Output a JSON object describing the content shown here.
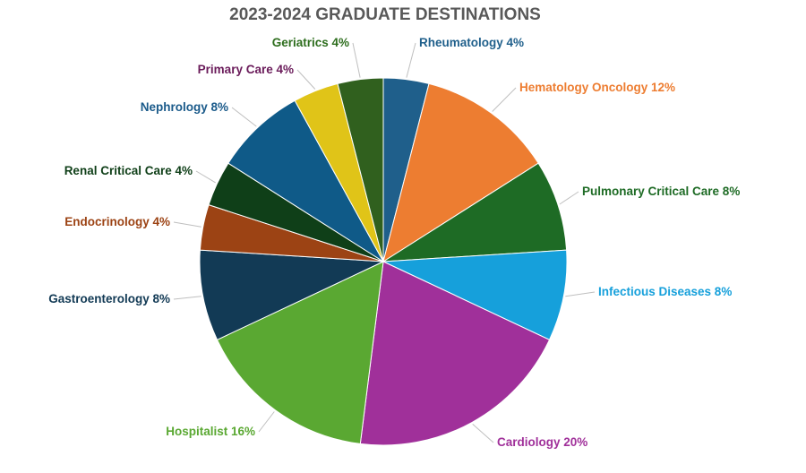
{
  "chart_data": {
    "type": "pie",
    "title": "2023-2024 GRADUATE DESTINATIONS",
    "slices": [
      {
        "name": "Rheumatology",
        "value": 4,
        "label": "Rheumatology  4%",
        "color": "#1f5f8b",
        "text_color": "#1f5f8b"
      },
      {
        "name": "Hematology Oncology",
        "value": 12,
        "label": "Hematology Oncology  12%",
        "color": "#ed7d31",
        "text_color": "#ed7d31"
      },
      {
        "name": "Pulmonary Critical Care",
        "value": 8,
        "label": "Pulmonary Critical Care  8%",
        "color": "#1e6b25",
        "text_color": "#1e6b25"
      },
      {
        "name": "Infectious Diseases",
        "value": 8,
        "label": "Infectious Diseases 8%",
        "color": "#16a0db",
        "text_color": "#16a0db"
      },
      {
        "name": "Cardiology",
        "value": 20,
        "label": "Cardiology 20%",
        "color": "#a0309a",
        "text_color": "#a0309a"
      },
      {
        "name": "Hospitalist",
        "value": 16,
        "label": "Hospitalist 16%",
        "color": "#5aa832",
        "text_color": "#5aa832"
      },
      {
        "name": "Gastroenterology",
        "value": 8,
        "label": "Gastroenterology 8%",
        "color": "#123a55",
        "text_color": "#123a55"
      },
      {
        "name": "Endocrinology",
        "value": 4,
        "label": "Endocrinology  4%",
        "color": "#9c4314",
        "text_color": "#9c4314"
      },
      {
        "name": "Renal Critical Care",
        "value": 4,
        "label": "Renal Critical Care 4%",
        "color": "#0f3f18",
        "text_color": "#0f3f18"
      },
      {
        "name": "Nephrology",
        "value": 8,
        "label": "Nephrology 8%",
        "color": "#0f5a88",
        "text_color": "#1a5a8a"
      },
      {
        "name": "Primary Care",
        "value": 4,
        "label": "Primary Care  4%",
        "color": "#e0c418",
        "text_color": "#6a1b5a"
      },
      {
        "name": "Geriatrics",
        "value": 4,
        "label": "Geriatrics  4%",
        "color": "#30601e",
        "text_color": "#2e6e1e"
      }
    ]
  }
}
